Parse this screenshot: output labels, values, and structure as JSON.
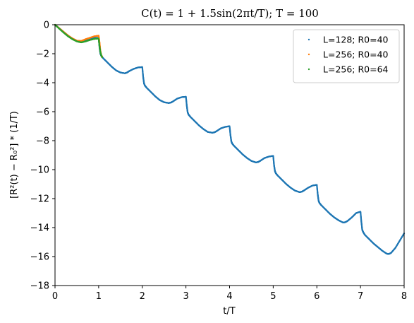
{
  "chart_data": {
    "type": "scatter",
    "title": "C(t) = 1 + 1.5sin(2πt/T); T = 100",
    "xlabel": "t/T",
    "ylabel": "[R²(t) − R₀²] * (1/T)",
    "xlim": [
      0,
      8
    ],
    "ylim": [
      -18,
      0
    ],
    "x_ticks": [
      0,
      1,
      2,
      3,
      4,
      5,
      6,
      7,
      8
    ],
    "y_ticks": [
      0,
      -2,
      -4,
      -6,
      -8,
      -10,
      -12,
      -14,
      -16,
      -18
    ],
    "x_tick_labels": [
      "0",
      "1",
      "2",
      "3",
      "4",
      "5",
      "6",
      "7",
      "8"
    ],
    "y_tick_labels": [
      "0",
      "−2",
      "−4",
      "−6",
      "−8",
      "−10",
      "−12",
      "−14",
      "−16",
      "−18"
    ],
    "grid": false,
    "legend_position": "top-right",
    "series": [
      {
        "name": "L=128; R0=40",
        "color": "#1f77b4",
        "x": [
          0,
          0.1,
          0.2,
          0.3,
          0.4,
          0.5,
          0.6,
          0.7,
          0.8,
          0.9,
          1.0,
          1.02,
          1.04,
          1.06,
          1.1,
          1.2,
          1.3,
          1.4,
          1.5,
          1.6,
          1.65,
          1.7,
          1.8,
          1.9,
          2.0,
          2.02,
          2.04,
          2.06,
          2.1,
          2.2,
          2.3,
          2.4,
          2.5,
          2.6,
          2.65,
          2.7,
          2.8,
          2.9,
          3.0,
          3.02,
          3.04,
          3.06,
          3.1,
          3.2,
          3.3,
          3.4,
          3.5,
          3.6,
          3.65,
          3.7,
          3.8,
          3.9,
          4.0,
          4.02,
          4.04,
          4.06,
          4.1,
          4.2,
          4.3,
          4.4,
          4.5,
          4.6,
          4.65,
          4.7,
          4.8,
          4.9,
          5.0,
          5.02,
          5.04,
          5.06,
          5.1,
          5.2,
          5.3,
          5.4,
          5.5,
          5.6,
          5.65,
          5.7,
          5.8,
          5.9,
          6.0,
          6.02,
          6.04,
          6.06,
          6.1,
          6.2,
          6.3,
          6.4,
          6.5,
          6.6,
          6.65,
          6.7,
          6.8,
          6.9,
          7.0,
          7.02,
          7.04,
          7.06,
          7.1,
          7.2,
          7.3,
          7.4,
          7.5,
          7.6,
          7.65,
          7.7,
          7.8,
          7.9,
          8.0
        ],
        "y": [
          0,
          -0.25,
          -0.5,
          -0.75,
          -0.95,
          -1.1,
          -1.15,
          -1.05,
          -0.95,
          -0.9,
          -0.9,
          -1.6,
          -2.0,
          -2.15,
          -2.3,
          -2.6,
          -2.9,
          -3.15,
          -3.3,
          -3.35,
          -3.3,
          -3.2,
          -3.05,
          -2.95,
          -2.92,
          -3.6,
          -4.05,
          -4.2,
          -4.35,
          -4.65,
          -4.95,
          -5.2,
          -5.35,
          -5.4,
          -5.38,
          -5.3,
          -5.1,
          -5.0,
          -4.97,
          -5.6,
          -6.05,
          -6.2,
          -6.35,
          -6.65,
          -6.95,
          -7.2,
          -7.4,
          -7.45,
          -7.43,
          -7.35,
          -7.15,
          -7.05,
          -7.0,
          -7.6,
          -8.05,
          -8.2,
          -8.35,
          -8.65,
          -8.95,
          -9.2,
          -9.4,
          -9.5,
          -9.48,
          -9.4,
          -9.2,
          -9.1,
          -9.05,
          -9.7,
          -10.1,
          -10.25,
          -10.4,
          -10.7,
          -11.0,
          -11.25,
          -11.45,
          -11.55,
          -11.53,
          -11.45,
          -11.25,
          -11.1,
          -11.05,
          -11.7,
          -12.15,
          -12.3,
          -12.45,
          -12.75,
          -13.05,
          -13.3,
          -13.5,
          -13.65,
          -13.63,
          -13.55,
          -13.3,
          -13.0,
          -12.9,
          -13.6,
          -14.15,
          -14.3,
          -14.5,
          -14.8,
          -15.1,
          -15.35,
          -15.6,
          -15.8,
          -15.82,
          -15.75,
          -15.4,
          -14.9,
          -14.4
        ]
      },
      {
        "name": "L=256; R0=40",
        "color": "#ff7f0e",
        "x": [
          0,
          0.1,
          0.2,
          0.3,
          0.4,
          0.5,
          0.6,
          0.7,
          0.8,
          0.9,
          1.0,
          1.02,
          1.04,
          1.06,
          1.08
        ],
        "y": [
          0,
          -0.25,
          -0.5,
          -0.75,
          -0.95,
          -1.1,
          -1.12,
          -1.0,
          -0.9,
          -0.8,
          -0.75,
          -1.2,
          -1.8,
          -2.1,
          -2.2
        ]
      },
      {
        "name": "L=256; R0=64",
        "color": "#2ca02c",
        "x": [
          0,
          0.1,
          0.2,
          0.3,
          0.4,
          0.5,
          0.6,
          0.7,
          0.8,
          0.9,
          1.0,
          1.02,
          1.04,
          1.06,
          1.08
        ],
        "y": [
          0,
          -0.28,
          -0.55,
          -0.8,
          -1.0,
          -1.15,
          -1.22,
          -1.15,
          -1.05,
          -0.98,
          -0.95,
          -1.5,
          -1.9,
          -2.1,
          -2.25
        ]
      }
    ]
  }
}
